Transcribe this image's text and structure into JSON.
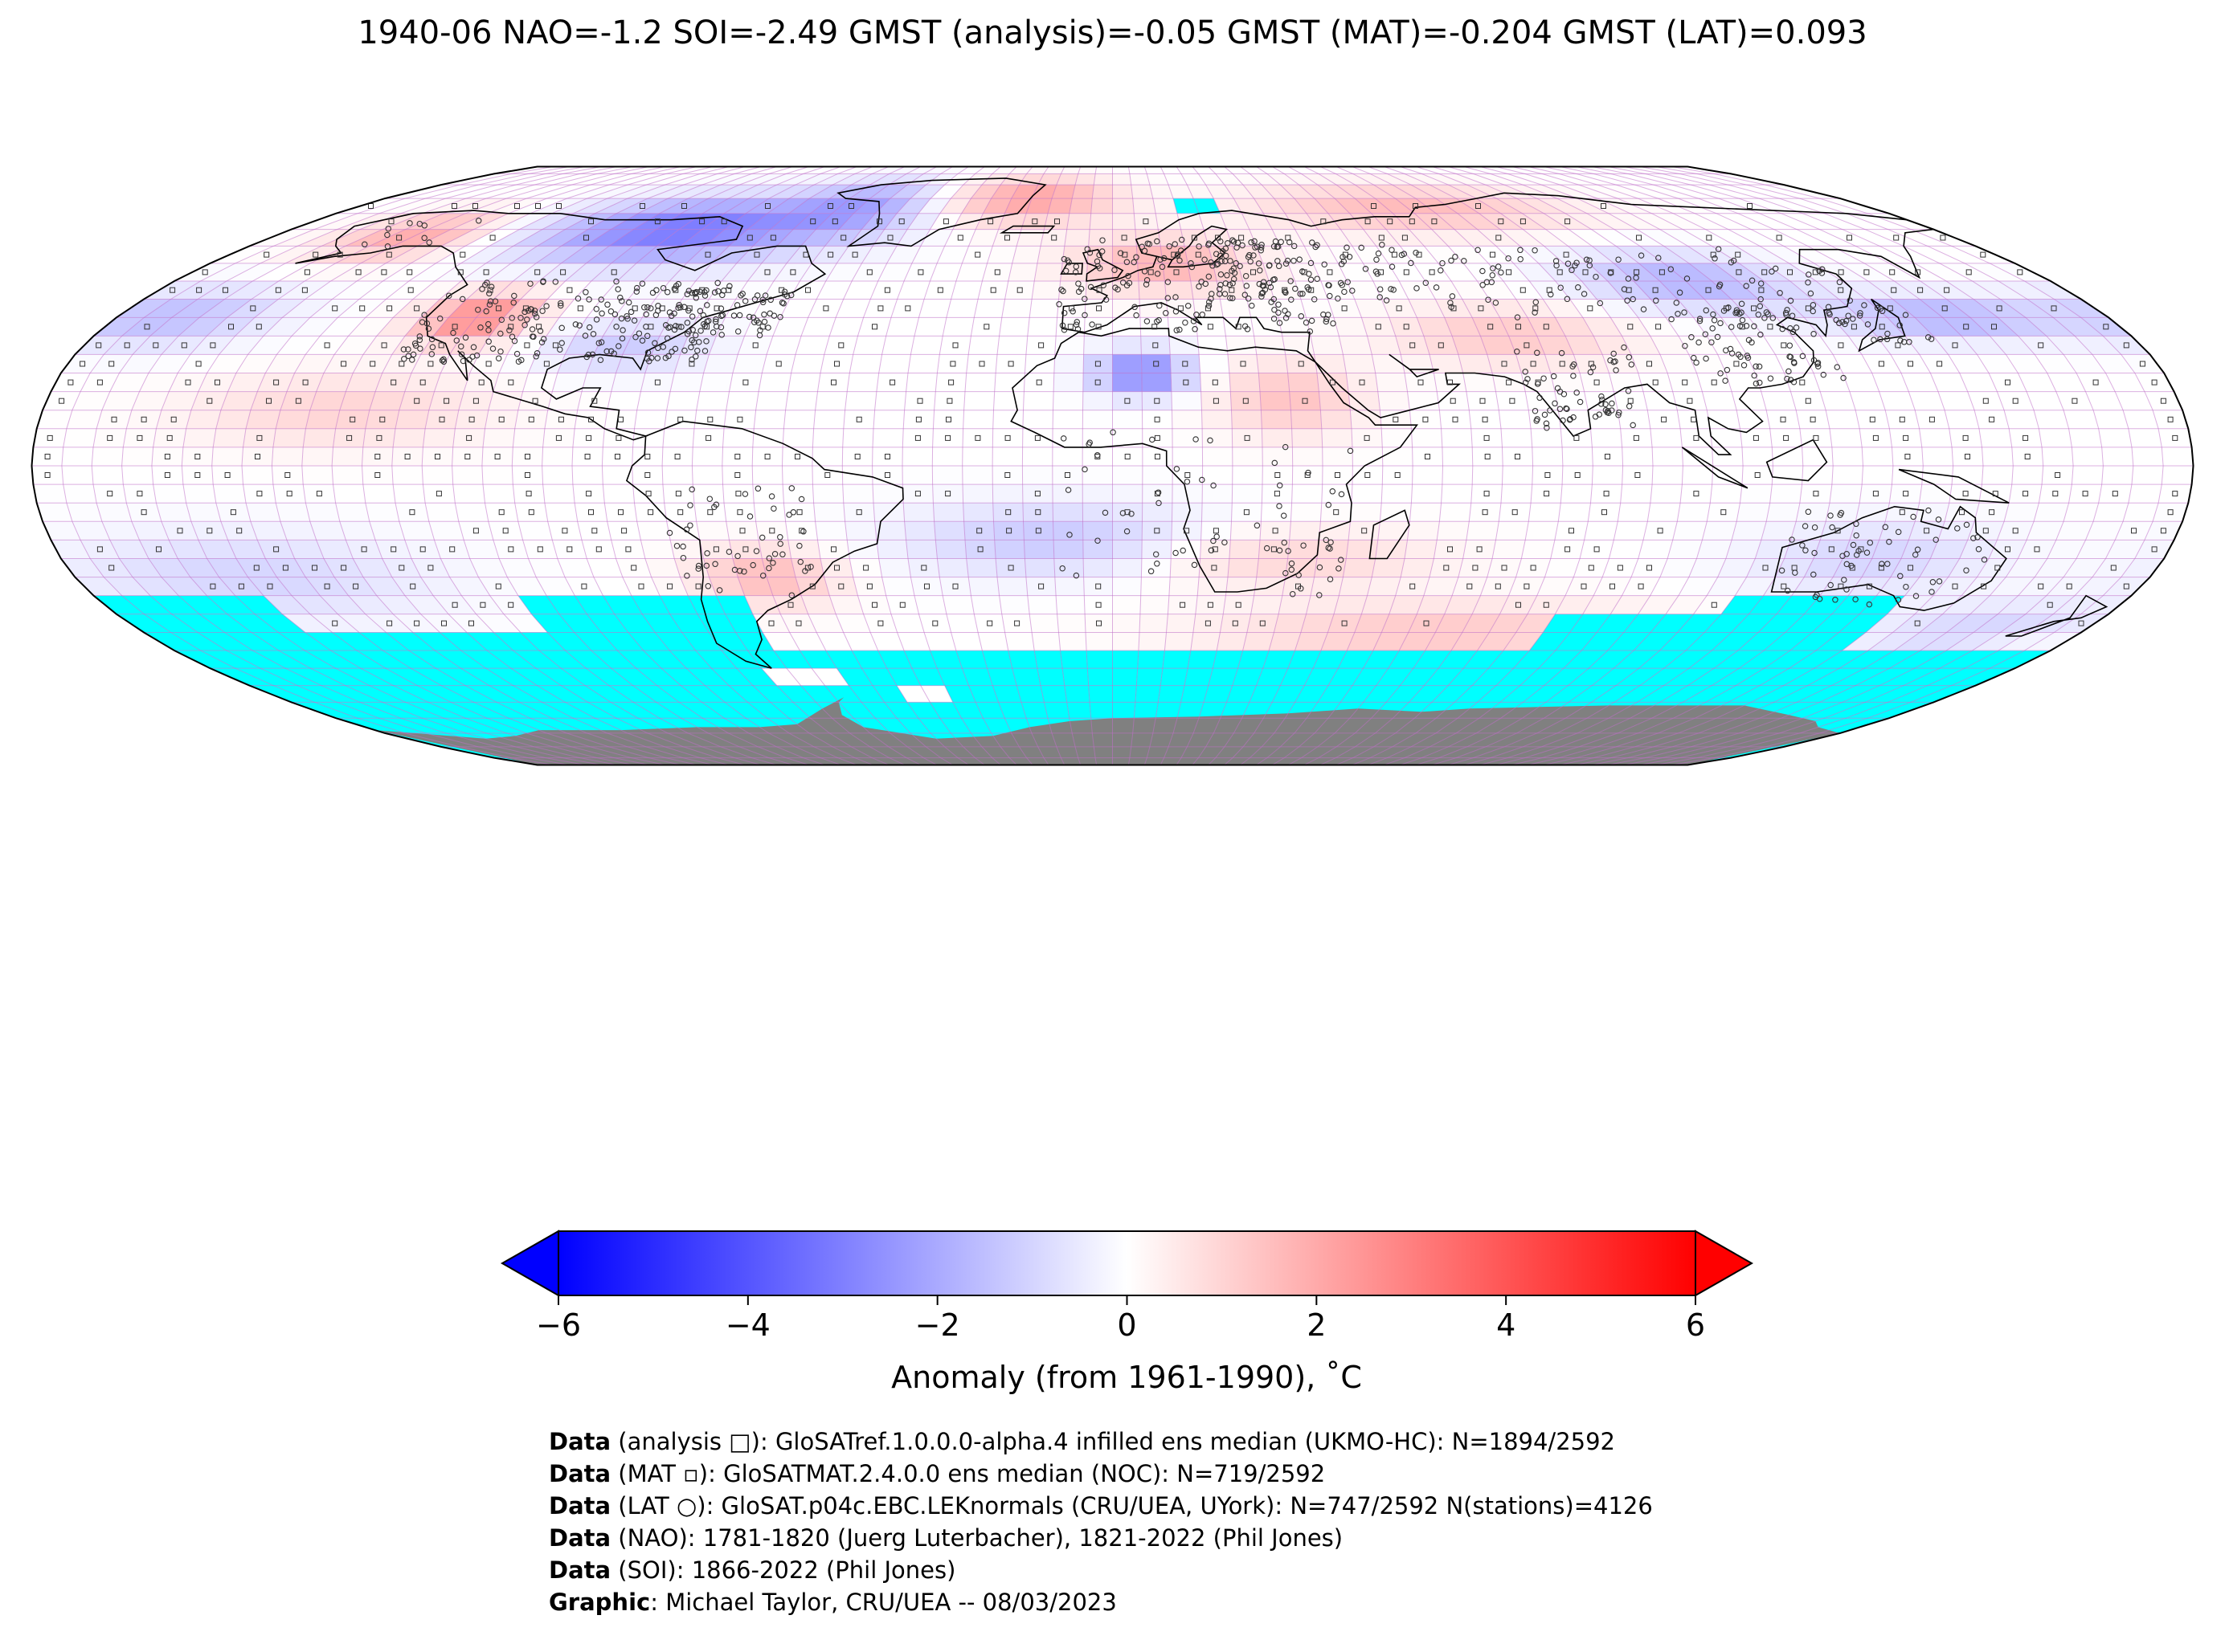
{
  "title": "1940-06 NAO=-1.2 SOI=-2.49 GMST (analysis)=-0.05 GMST (MAT)=-0.204 GMST (LAT)=0.093",
  "colorbar": {
    "label": "Anomaly (from 1961-1990), ˚C",
    "ticks": [
      "−6",
      "−4",
      "−2",
      "0",
      "2",
      "4",
      "6"
    ],
    "range": [
      -6,
      6
    ],
    "cmap": {
      "low": "#0000ff",
      "mid": "#ffffff",
      "high": "#ff0000"
    }
  },
  "colors": {
    "no_data": "#00ffff",
    "antarctica": "#808080",
    "grid_lines": "#c070c8",
    "coastline": "#000000"
  },
  "map": {
    "projection": "Robinson",
    "grid_resolution_deg": 5,
    "field": "temperature anomaly",
    "markers": [
      "analysis □",
      "MAT ▫",
      "LAT ○"
    ]
  },
  "credits": [
    {
      "bold": "Data",
      "text": " (analysis □): GloSATref.1.0.0.0-alpha.4 infilled ens median (UKMO-HC): N=1894/2592"
    },
    {
      "bold": "Data",
      "text": " (MAT ▫): GloSATMAT.2.4.0.0 ens median (NOC): N=719/2592"
    },
    {
      "bold": "Data",
      "text": " (LAT ○): GloSAT.p04c.EBC.LEKnormals (CRU/UEA, UYork): N=747/2592 N(stations)=4126"
    },
    {
      "bold": "Data",
      "text": " (NAO): 1781-1820 (Juerg Luterbacher), 1821-2022 (Phil Jones)"
    },
    {
      "bold": "Data",
      "text": " (SOI): 1866-2022 (Phil Jones)"
    },
    {
      "bold": "Graphic",
      "text": ": Michael Taylor, CRU/UEA -- 08/03/2023"
    }
  ]
}
